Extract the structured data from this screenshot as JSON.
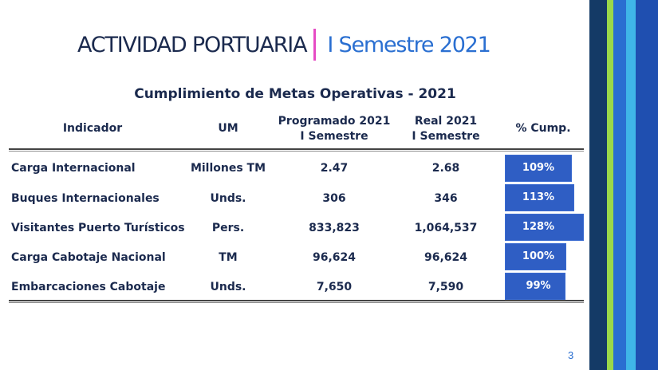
{
  "header": {
    "title_main": "ACTIVIDAD PORTUARIA",
    "title_sub": "I Semestre 2021"
  },
  "table": {
    "title": "Cumplimiento de Metas Operativas - 2021",
    "columns": {
      "indicator": "Indicador",
      "unit": "UM",
      "planned_line1": "Programado 2021",
      "planned_line2": "I Semestre",
      "actual_line1": "Real 2021",
      "actual_line2": "I Semestre",
      "compliance": "% Cump."
    },
    "rows": [
      {
        "indicator": "Carga Internacional",
        "unit": "Millones TM",
        "planned": "2.47",
        "actual": "2.68",
        "compliance": "109%",
        "compliance_value": 109
      },
      {
        "indicator": "Buques  Internacionales",
        "unit": "Unds.",
        "planned": "306",
        "actual": "346",
        "compliance": "113%",
        "compliance_value": 113
      },
      {
        "indicator": "Visitantes Puerto Turísticos",
        "unit": "Pers.",
        "planned": "833,823",
        "actual": "1,064,537",
        "compliance": "128%",
        "compliance_value": 128
      },
      {
        "indicator": "Carga Cabotaje Nacional",
        "unit": "TM",
        "planned": "96,624",
        "actual": "96,624",
        "compliance": "100%",
        "compliance_value": 100
      },
      {
        "indicator": "Embarcaciones Cabotaje",
        "unit": "Unds.",
        "planned": "7,650",
        "actual": "7,590",
        "compliance": "99%",
        "compliance_value": 99
      }
    ]
  },
  "footer": {
    "page_number": "3"
  },
  "colors": {
    "title_dark": "#1b2a4e",
    "title_accent": "#2a6fd1",
    "separator": "#e64bc4",
    "bar_fill": "#2f5ec4",
    "stripe_1": "#143a66",
    "stripe_2": "#9bd94a",
    "stripe_3": "#2a6fd1",
    "stripe_4": "#3fb6e8",
    "stripe_5": "#1f4fb0"
  }
}
